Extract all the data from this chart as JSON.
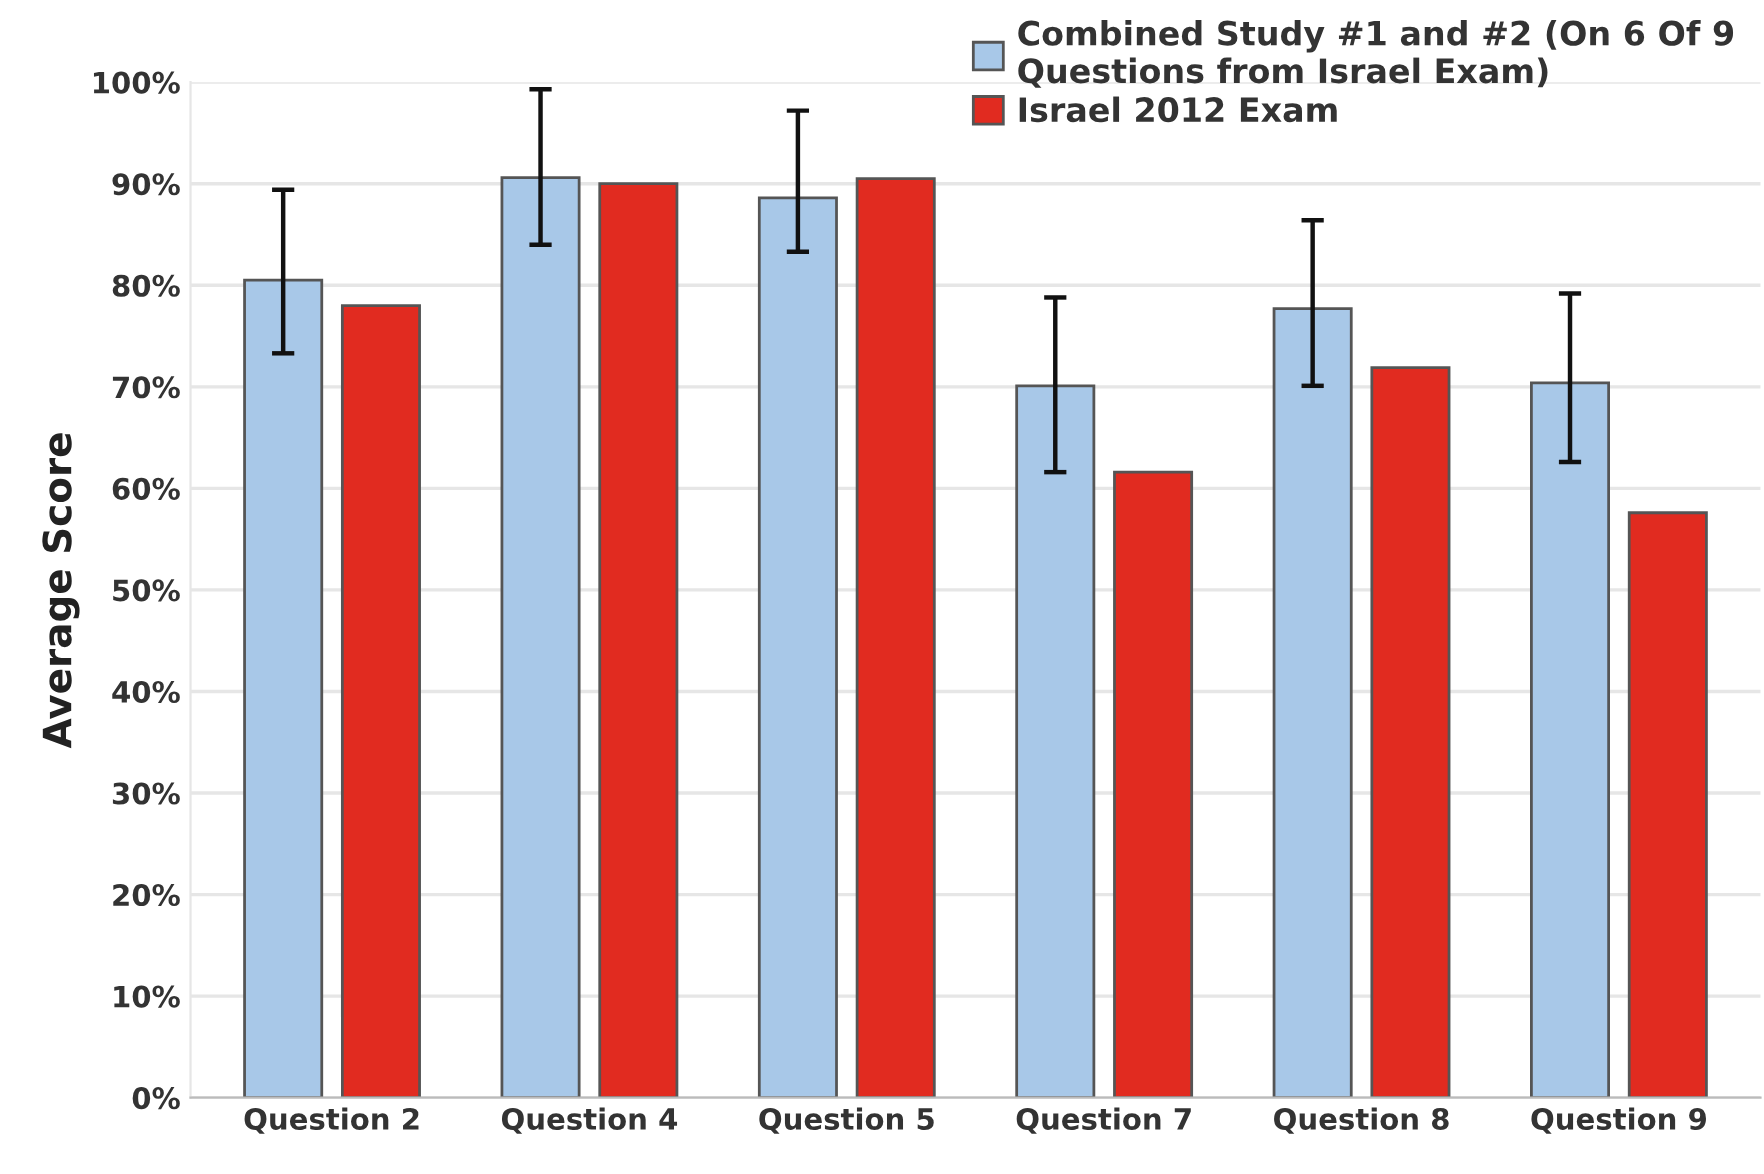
{
  "chart_data": {
    "type": "bar",
    "ylabel": "Average Score",
    "categories": [
      "Question 2",
      "Question 4",
      "Question 5",
      "Question 7",
      "Question 8",
      "Question 9"
    ],
    "series": [
      {
        "name": "Combined Study #1 and #2 (On 6 Of 9 Questions from Israel Exam)",
        "color": "#a8c8e8",
        "values": [
          80.5,
          90.6,
          88.6,
          70.1,
          77.7,
          70.4
        ],
        "errors": [
          [
            73.3,
            89.4
          ],
          [
            84.0,
            99.3
          ],
          [
            83.3,
            97.2
          ],
          [
            61.6,
            78.8
          ],
          [
            70.1,
            86.4
          ],
          [
            62.6,
            79.2
          ]
        ]
      },
      {
        "name": "Israel 2012 Exam",
        "color": "#e12b20",
        "values": [
          78.0,
          90.0,
          90.5,
          61.6,
          71.9,
          57.6
        ]
      }
    ],
    "ylim": [
      0,
      100
    ],
    "yticks": [
      {
        "value": 0,
        "label": "0%"
      },
      {
        "value": 10,
        "label": "10%"
      },
      {
        "value": 20,
        "label": "20%"
      },
      {
        "value": 30,
        "label": "30%"
      },
      {
        "value": 40,
        "label": "40%"
      },
      {
        "value": 50,
        "label": "50%"
      },
      {
        "value": 60,
        "label": "60%"
      },
      {
        "value": 70,
        "label": "70%"
      },
      {
        "value": 80,
        "label": "80%"
      },
      {
        "value": 90,
        "label": "90%"
      },
      {
        "value": 100,
        "label": "100%"
      }
    ],
    "grid": "y",
    "legend": "top right"
  }
}
